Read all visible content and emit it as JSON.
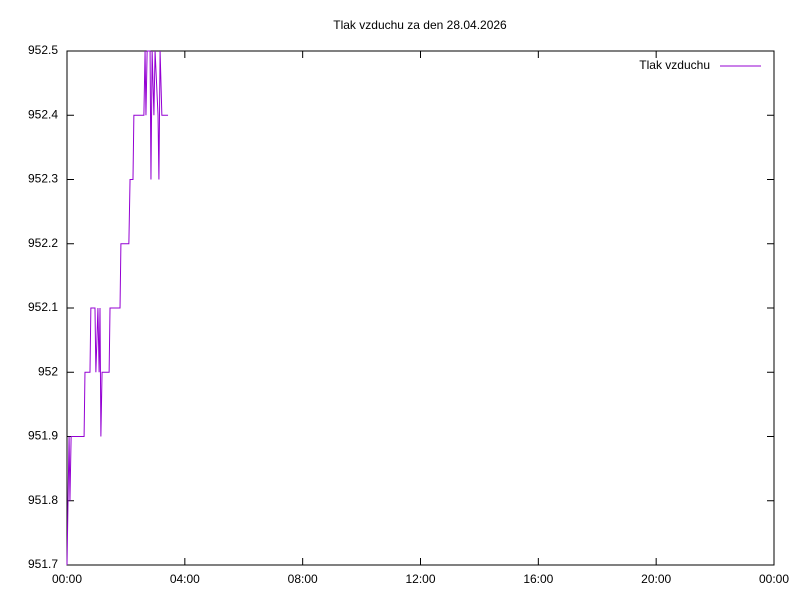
{
  "chart_data": {
    "type": "line",
    "title": "Tlak vzduchu za den 28.04.2026",
    "x": [
      0,
      0.07,
      0.1,
      0.14,
      0.58,
      0.61,
      0.78,
      0.81,
      0.95,
      0.98,
      1.05,
      1.09,
      1.12,
      1.15,
      1.19,
      1.43,
      1.46,
      1.8,
      1.83,
      2.1,
      2.14,
      2.24,
      2.27,
      2.61,
      2.65,
      2.68,
      2.72,
      2.82,
      2.85,
      2.89,
      2.95,
      2.99,
      3.09,
      3.12,
      3.16,
      3.22,
      3.43
    ],
    "series": [
      {
        "name": "Tlak vzduchu",
        "color": "#9400d3",
        "values": [
          951.7,
          951.9,
          951.8,
          951.9,
          951.9,
          952.0,
          952.0,
          952.1,
          952.1,
          952.0,
          952.1,
          952.0,
          952.1,
          951.9,
          952.0,
          952.0,
          952.1,
          952.1,
          952.2,
          952.2,
          952.3,
          952.3,
          952.4,
          952.4,
          952.5,
          952.4,
          952.5,
          952.5,
          952.3,
          952.5,
          952.4,
          952.5,
          952.4,
          952.3,
          952.5,
          952.4,
          952.4
        ]
      }
    ],
    "xlim": [
      0,
      24
    ],
    "xticks": [
      {
        "value": 0,
        "label": "00:00"
      },
      {
        "value": 4,
        "label": "04:00"
      },
      {
        "value": 8,
        "label": "08:00"
      },
      {
        "value": 12,
        "label": "12:00"
      },
      {
        "value": 16,
        "label": "16:00"
      },
      {
        "value": 20,
        "label": "20:00"
      },
      {
        "value": 24,
        "label": "00:00"
      }
    ],
    "ylim": [
      951.7,
      952.5
    ],
    "yticks": [
      951.7,
      951.8,
      951.9,
      952,
      952.1,
      952.2,
      952.3,
      952.4,
      952.5
    ],
    "grid": false,
    "legend": "top-right"
  }
}
